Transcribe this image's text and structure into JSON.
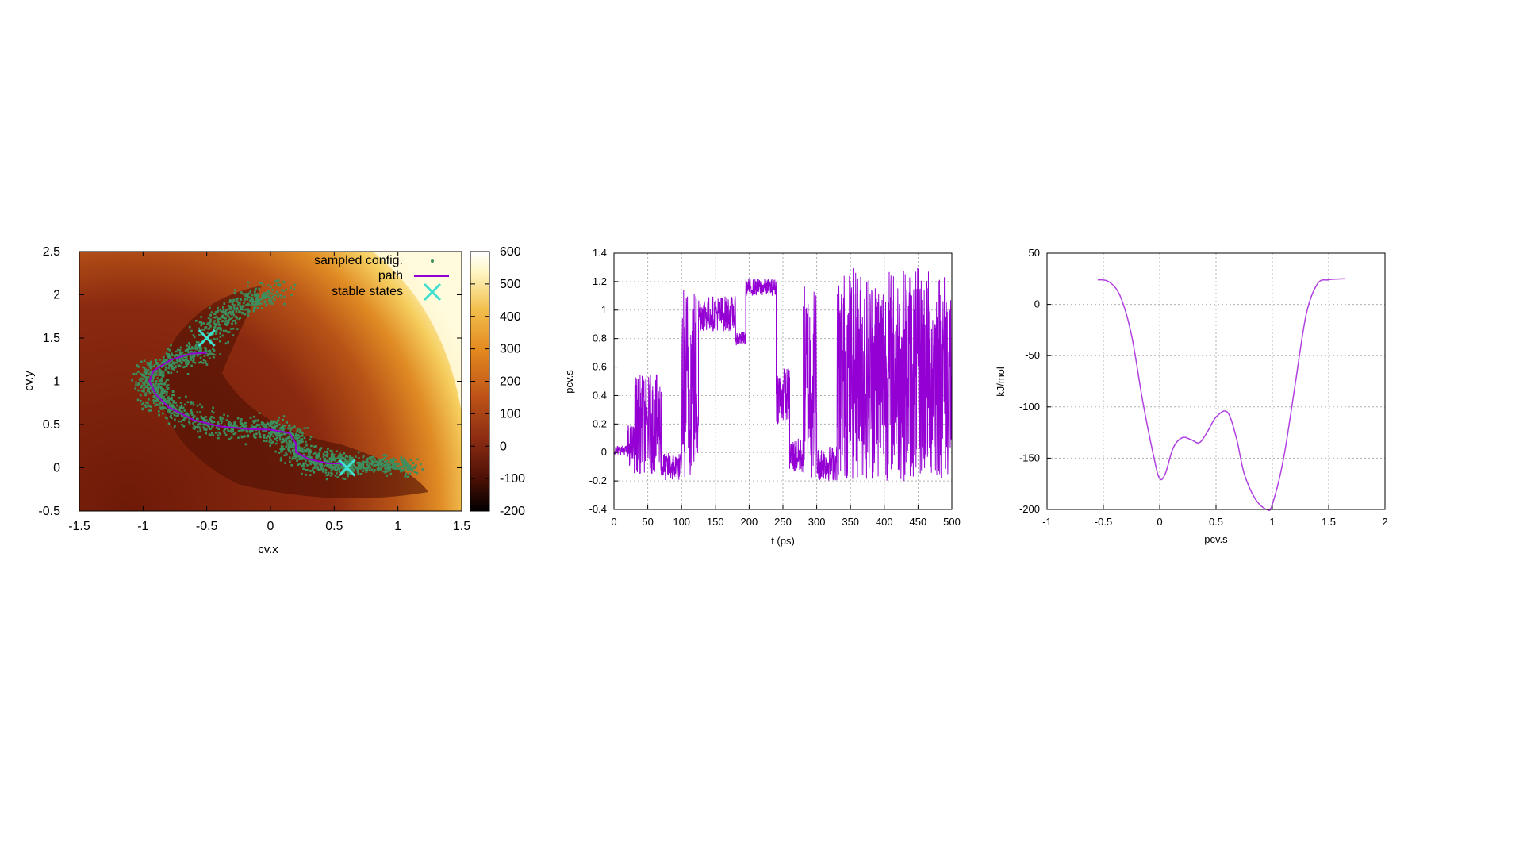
{
  "chart_data": [
    {
      "type": "heatmap",
      "xlabel": "cv.x",
      "ylabel": "cv.y",
      "xlim": [
        -1.5,
        1.5
      ],
      "ylim": [
        -0.5,
        2.5
      ],
      "xticks": [
        "-1.5",
        "-1",
        "-0.5",
        "0",
        "0.5",
        "1",
        "1.5"
      ],
      "yticks": [
        "-0.5",
        "0",
        "0.5",
        "1",
        "1.5",
        "2",
        "2.5"
      ],
      "colorbar": {
        "range": [
          -200,
          600
        ],
        "ticks": [
          "-200",
          "-100",
          "0",
          "100",
          "200",
          "300",
          "400",
          "500",
          "600"
        ],
        "colors": [
          "#000000",
          "#4a0f05",
          "#8c2d12",
          "#c05518",
          "#e3891f",
          "#f3c04d",
          "#fff6c4",
          "#ffffff"
        ]
      },
      "legend": {
        "position": "top-right",
        "entries": [
          {
            "label": "sampled config.",
            "color": "#3c8f5e",
            "kind": "point"
          },
          {
            "label": "path",
            "color": "#9400d3",
            "kind": "line"
          },
          {
            "label": "stable states",
            "color": "#40e0d0",
            "kind": "cross"
          }
        ]
      },
      "path": [
        [
          -0.5,
          1.33
        ],
        [
          -0.62,
          1.32
        ],
        [
          -0.78,
          1.25
        ],
        [
          -0.92,
          1.12
        ],
        [
          -0.95,
          1.0
        ],
        [
          -0.9,
          0.85
        ],
        [
          -0.8,
          0.7
        ],
        [
          -0.6,
          0.55
        ],
        [
          -0.4,
          0.48
        ],
        [
          -0.2,
          0.45
        ],
        [
          0.0,
          0.44
        ],
        [
          0.15,
          0.4
        ],
        [
          0.2,
          0.28
        ],
        [
          0.2,
          0.18
        ],
        [
          0.3,
          0.1
        ],
        [
          0.45,
          0.05
        ],
        [
          0.55,
          0.05
        ],
        [
          0.6,
          0.0
        ]
      ],
      "stable_states": [
        [
          -0.5,
          1.5
        ],
        [
          0.6,
          0.0
        ]
      ],
      "sampled_config_region": "band along path, approx 2500 points"
    },
    {
      "type": "line",
      "xlabel": "t (ps)",
      "ylabel": "pcv.s",
      "xlim": [
        0,
        500
      ],
      "ylim": [
        -0.4,
        1.4
      ],
      "xticks": [
        "0",
        "50",
        "100",
        "150",
        "200",
        "250",
        "300",
        "350",
        "400",
        "450",
        "500"
      ],
      "yticks": [
        "-0.4",
        "-0.2",
        "0",
        "0.2",
        "0.4",
        "0.6",
        "0.8",
        "1",
        "1.2",
        "1.4"
      ],
      "grid": true,
      "color": "#9400d3",
      "segments": [
        {
          "t": [
            0,
            20
          ],
          "low": -0.02,
          "high": 0.05
        },
        {
          "t": [
            20,
            30
          ],
          "low": -0.1,
          "high": 0.2
        },
        {
          "t": [
            30,
            70
          ],
          "low": -0.15,
          "high": 0.55
        },
        {
          "t": [
            70,
            100
          ],
          "low": -0.2,
          "high": 0.0
        },
        {
          "t": [
            100,
            125
          ],
          "low": -0.2,
          "high": 1.2
        },
        {
          "t": [
            125,
            180
          ],
          "low": 0.85,
          "high": 1.1
        },
        {
          "t": [
            180,
            195
          ],
          "low": 0.75,
          "high": 0.85
        },
        {
          "t": [
            195,
            240
          ],
          "low": 1.1,
          "high": 1.22
        },
        {
          "t": [
            240,
            260
          ],
          "low": 0.2,
          "high": 0.6
        },
        {
          "t": [
            260,
            280
          ],
          "low": -0.15,
          "high": 0.1
        },
        {
          "t": [
            280,
            300
          ],
          "low": -0.2,
          "high": 1.2
        },
        {
          "t": [
            300,
            330
          ],
          "low": -0.2,
          "high": 0.05
        },
        {
          "t": [
            330,
            500
          ],
          "low": -0.2,
          "high": 1.3
        }
      ]
    },
    {
      "type": "line",
      "xlabel": "pcv.s",
      "ylabel": "kJ/mol",
      "xlim": [
        -1,
        2
      ],
      "ylim": [
        -200,
        50
      ],
      "xticks": [
        "-1",
        "-0.5",
        "0",
        "0.5",
        "1",
        "1.5",
        "2"
      ],
      "yticks": [
        "-200",
        "-150",
        "-100",
        "-50",
        "0",
        "50"
      ],
      "grid": true,
      "color": "#9400d3",
      "x": [
        -0.55,
        -0.45,
        -0.35,
        -0.25,
        -0.15,
        -0.05,
        0.0,
        0.05,
        0.12,
        0.2,
        0.28,
        0.35,
        0.42,
        0.5,
        0.6,
        0.68,
        0.75,
        0.85,
        0.95,
        1.0,
        1.1,
        1.2,
        1.3,
        1.4,
        1.5,
        1.65
      ],
      "y": [
        24,
        22,
        8,
        -30,
        -95,
        -150,
        -170,
        -165,
        -140,
        -130,
        -132,
        -135,
        -125,
        -110,
        -105,
        -130,
        -165,
        -190,
        -200,
        -195,
        -150,
        -80,
        -10,
        20,
        24,
        25
      ]
    }
  ]
}
